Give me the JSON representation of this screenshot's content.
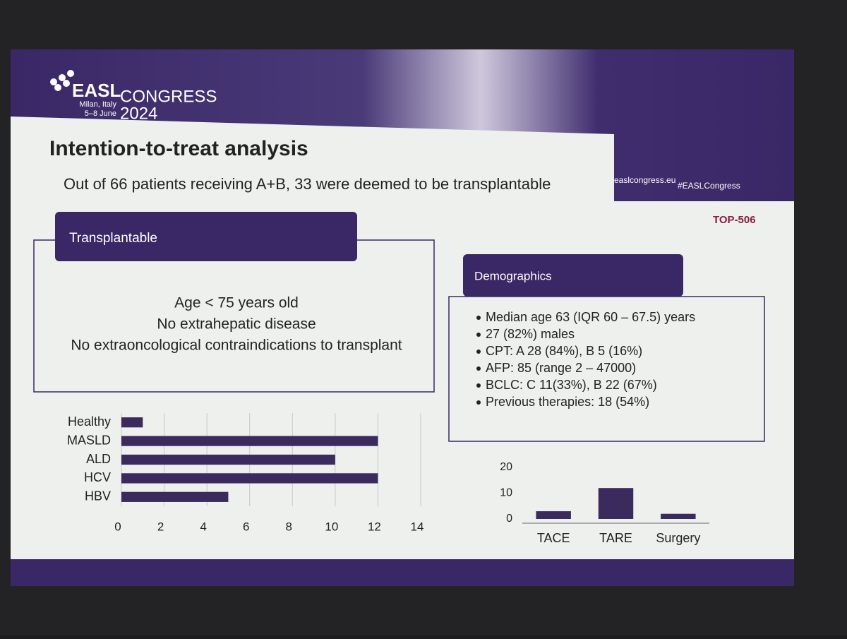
{
  "header": {
    "brand": "EASL",
    "event": "CONGRESS",
    "year": "2024",
    "city": "Milan, Italy",
    "dates": "5–8 June",
    "website": "easlcongress.eu",
    "hashtag": "#EASLCongress",
    "abstract_id": "TOP-506"
  },
  "title": "Intention-to-treat analysis",
  "subtitle": "Out of 66 patients receiving A+B, 33 were deemed to be transplantable",
  "criteria": {
    "heading": "Transplantable",
    "lines": [
      "Age < 75 years old",
      "No extrahepatic disease",
      "No extraoncological contraindications to transplant"
    ]
  },
  "demographics": {
    "heading": "Demographics",
    "items": [
      "Median age 63 (IQR 60 – 67.5) years",
      "27 (82%) males",
      "CPT: A 28 (84%), B 5 (16%)",
      "AFP: 85 (range 2 – 47000)",
      "BCLC: C 11(33%), B 22 (67%)",
      "Previous therapies: 18 (54%)"
    ]
  },
  "chart_data": [
    {
      "type": "bar",
      "orientation": "horizontal",
      "categories": [
        "Healthy",
        "MASLD",
        "ALD",
        "HCV",
        "HBV"
      ],
      "values": [
        1,
        12,
        10,
        12,
        5
      ],
      "color": "#3b2a5e",
      "xlim": [
        0,
        14
      ],
      "xticks": [
        0,
        2,
        4,
        6,
        8,
        10,
        12,
        14
      ],
      "grid": true
    },
    {
      "type": "bar",
      "orientation": "vertical",
      "categories": [
        "TACE",
        "TARE",
        "Surgery"
      ],
      "values": [
        3,
        12,
        2
      ],
      "color": "#3b2a5e",
      "ylim": [
        0,
        20
      ],
      "yticks": [
        0,
        10,
        20
      ],
      "grid": false
    }
  ]
}
